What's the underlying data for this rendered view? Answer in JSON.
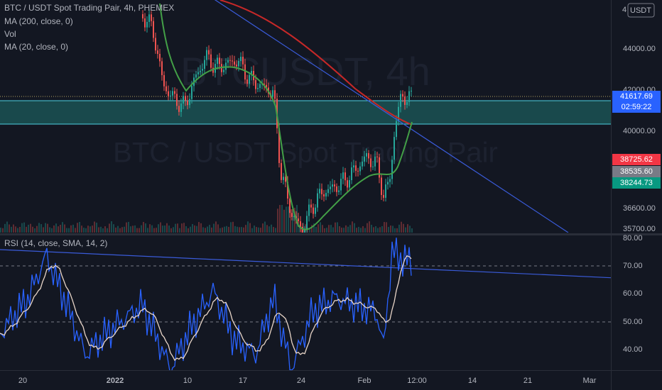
{
  "legend": {
    "symbol": "BTC / USDT Spot Trading Pair, 4h, PHEMEX",
    "ma200": "MA (200, close, 0)",
    "vol": "Vol",
    "ma20": "MA (20, close, 0)"
  },
  "watermark": {
    "ticker": "BTCUSDT, 4h",
    "name": "BTC / USDT Spot Trading Pair"
  },
  "price_axis_top": "4",
  "currency": "USDT",
  "price_axis": [
    "44000.00",
    "42000.00",
    "40000.00",
    "36600.00",
    "35700.00"
  ],
  "price_tags": {
    "last": "41617.69",
    "countdown": "02:59:22",
    "ask": "38725.62",
    "mid": "38535.60",
    "bid": "38244.73"
  },
  "rsi": {
    "legend": "RSI (14, close, SMA, 14, 2)",
    "axis": [
      "80.00",
      "70.00",
      "60.00",
      "50.00",
      "40.00"
    ]
  },
  "time_axis": [
    "20",
    "2022",
    "10",
    "17",
    "24",
    "Feb",
    "12:00",
    "14",
    "21",
    "Mar"
  ]
}
